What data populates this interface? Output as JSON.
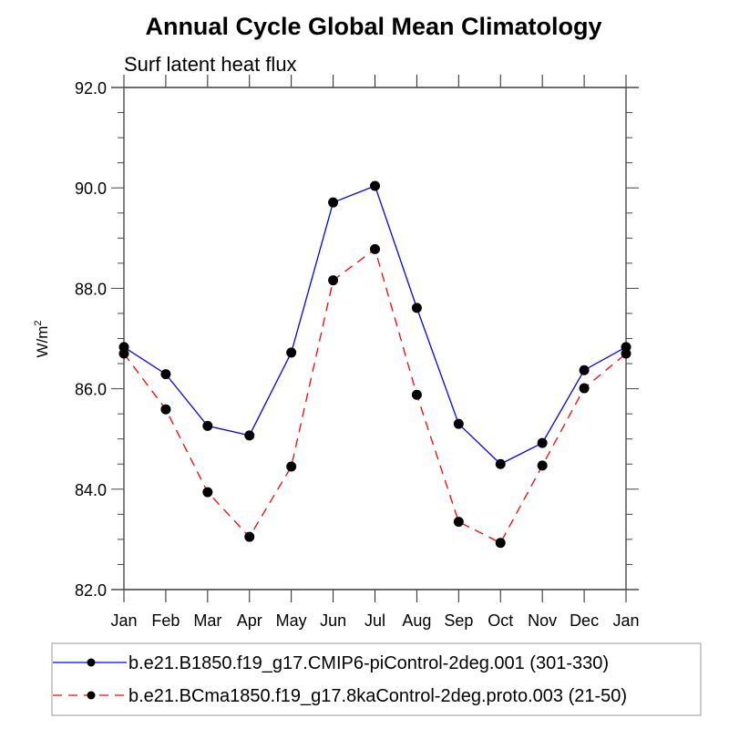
{
  "chart_data": {
    "type": "line",
    "title": "Annual Cycle Global Mean Climatology",
    "subtitle": "Surf latent heat flux",
    "xlabel": "",
    "ylabel": "W/m",
    "ylabel_superscript": "2",
    "categories": [
      "Jan",
      "Feb",
      "Mar",
      "Apr",
      "May",
      "Jun",
      "Jul",
      "Aug",
      "Sep",
      "Oct",
      "Nov",
      "Dec",
      "Jan"
    ],
    "ylim": [
      82.0,
      92.0
    ],
    "y_major_ticks": [
      82.0,
      84.0,
      86.0,
      88.0,
      90.0,
      92.0
    ],
    "y_tick_labels": [
      "82.0",
      "84.0",
      "86.0",
      "88.0",
      "90.0",
      "92.0"
    ],
    "y_minor_step": 0.5,
    "grid": false,
    "legend_position": "bottom",
    "series": [
      {
        "name": "b.e21.B1850.f19_g17.CMIP6-piControl-2deg.001 (301-330)",
        "color": "#0000ff",
        "line_style": "solid",
        "marker": "filled-circle",
        "values": [
          86.83,
          86.29,
          85.26,
          85.07,
          86.72,
          89.71,
          90.04,
          87.61,
          85.3,
          84.5,
          84.92,
          86.37,
          86.83
        ]
      },
      {
        "name": "b.e21.BCma1850.f19_g17.8kaControl-2deg.proto.003 (21-50)",
        "color": "#ff0000",
        "line_style": "dashed",
        "marker": "filled-circle",
        "values": [
          86.7,
          85.59,
          83.94,
          83.05,
          84.45,
          88.16,
          88.78,
          85.88,
          83.35,
          82.93,
          84.47,
          86.01,
          86.7
        ]
      }
    ]
  }
}
